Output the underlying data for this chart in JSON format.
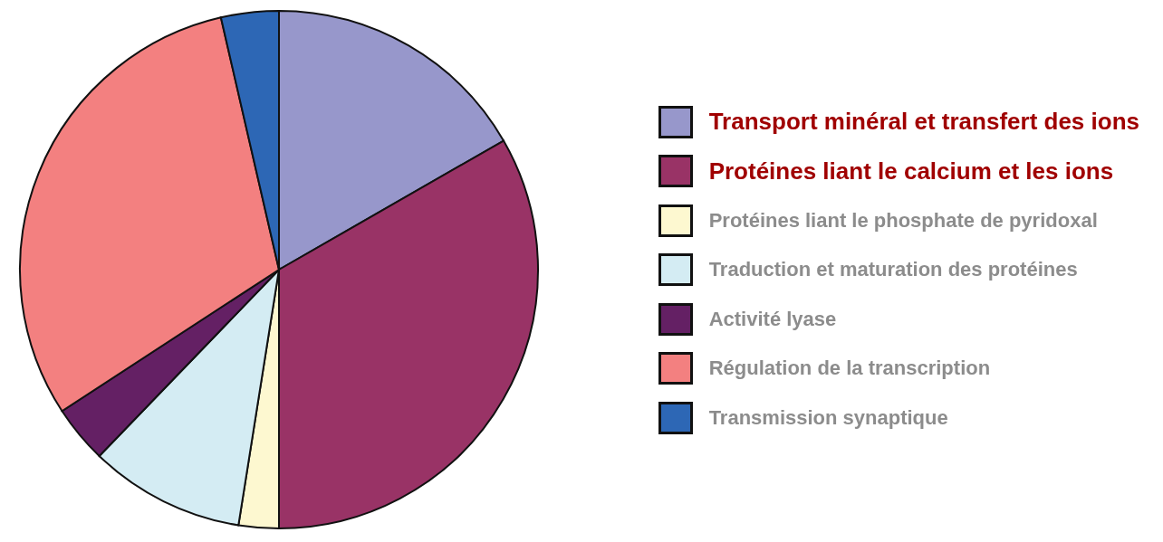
{
  "chart_data": {
    "type": "pie",
    "categories": [
      "Transport minéral et transfert des ions",
      "Protéines liant le calcium et les ions",
      "Protéines liant le phosphate de pyridoxal",
      "Traduction et maturation des protéines",
      "Activité lyase",
      "Régulation de la transcription",
      "Transmission synaptique"
    ],
    "values": [
      16.7,
      33.3,
      2.5,
      9.7,
      3.6,
      30.6,
      3.6
    ],
    "colors": [
      "#9797cb",
      "#993366",
      "#fdf8d0",
      "#d4ecf3",
      "#642064",
      "#f38080",
      "#2d67b5"
    ],
    "legend": "right"
  }
}
